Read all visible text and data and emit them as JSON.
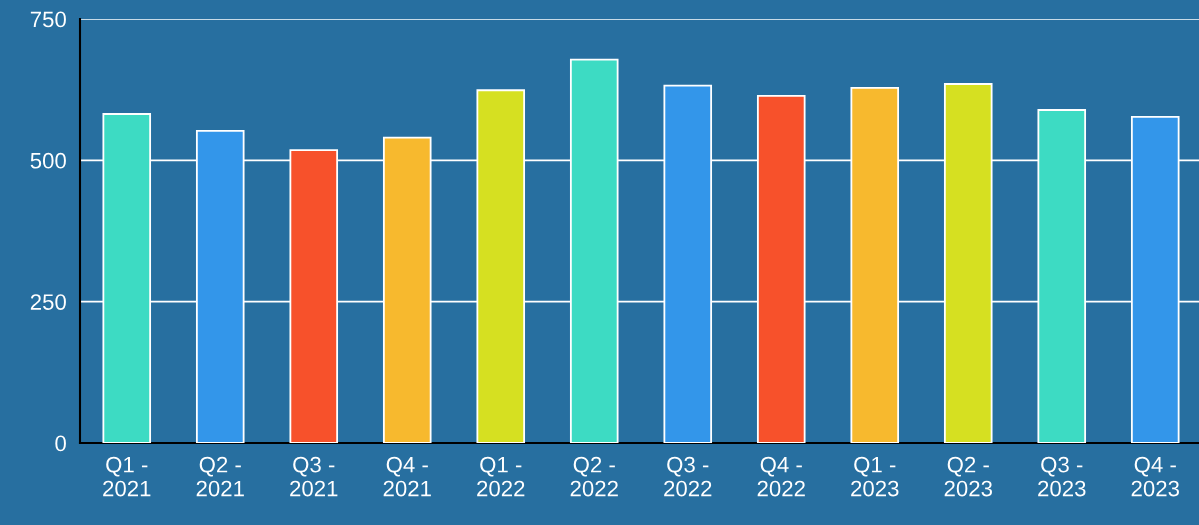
{
  "chart_data": {
    "type": "bar",
    "categories": [
      "Q1 -\n2021",
      "Q2 -\n2021",
      "Q3 -\n2021",
      "Q4 -\n2021",
      "Q1 -\n2022",
      "Q2 -\n2022",
      "Q3 -\n2022",
      "Q4 -\n2022",
      "Q1 -\n2023",
      "Q2 -\n2023",
      "Q3 -\n2023",
      "Q4 -\n2023"
    ],
    "values": [
      582,
      552,
      518,
      540,
      624,
      678,
      632,
      614,
      628,
      635,
      589,
      577
    ],
    "colors": [
      "#3ddbc3",
      "#3396ea",
      "#f7512b",
      "#f7b92e",
      "#d6e021",
      "#3ddbc3",
      "#3396ea",
      "#f7512b",
      "#f7b92e",
      "#d6e021",
      "#3ddbc3",
      "#3396ea"
    ],
    "ylim": [
      0,
      750
    ],
    "yticks": [
      0,
      250,
      500,
      750
    ],
    "grid": "y",
    "legend": false
  }
}
